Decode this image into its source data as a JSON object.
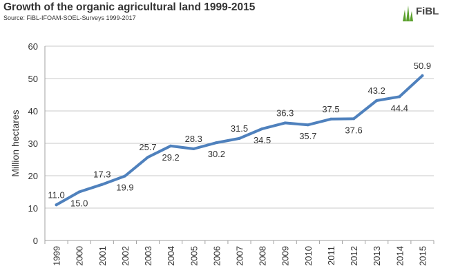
{
  "header": {
    "title": "Growth of the organic agricultural land 1999-2015",
    "source": "Source: FiBL-IFOAM-SOEL-Surveys 1999-2017",
    "logo_text": "FiBL"
  },
  "colors": {
    "line": "#4F81BD",
    "grid": "#C8C8C8",
    "axis": "#A0A0A0",
    "text": "#333333",
    "logo_green": "#5AA02C"
  },
  "chart_data": {
    "type": "line",
    "title": "Growth of the organic agricultural land 1999-2015",
    "subtitle": "Source: FiBL-IFOAM-SOEL-Surveys 1999-2017",
    "xlabel": "",
    "ylabel": "Million hectares",
    "ylim": [
      0,
      60
    ],
    "yticks": [
      "0",
      "10",
      "20",
      "30",
      "40",
      "50",
      "60"
    ],
    "grid": true,
    "legend": "none",
    "categories": [
      "1999",
      "2000",
      "2001",
      "2002",
      "2003",
      "2004",
      "2005",
      "2006",
      "2007",
      "2008",
      "2009",
      "2010",
      "2011",
      "2012",
      "2013",
      "2014",
      "2015"
    ],
    "values": [
      11.0,
      15.0,
      17.3,
      19.9,
      25.7,
      29.2,
      28.3,
      30.2,
      31.5,
      34.5,
      36.3,
      35.7,
      37.5,
      37.6,
      43.2,
      44.4,
      50.9
    ],
    "data_labels": [
      "11.0",
      "15.0",
      "17.3",
      "19.9",
      "25.7",
      "29.2",
      "28.3",
      "30.2",
      "31.5",
      "34.5",
      "36.3",
      "35.7",
      "37.5",
      "37.6",
      "43.2",
      "44.4",
      "50.9"
    ],
    "label_positions": [
      "above",
      "below",
      "above",
      "below",
      "above",
      "below",
      "above",
      "below",
      "above",
      "below",
      "above",
      "below",
      "above",
      "below",
      "above",
      "below",
      "above"
    ]
  }
}
